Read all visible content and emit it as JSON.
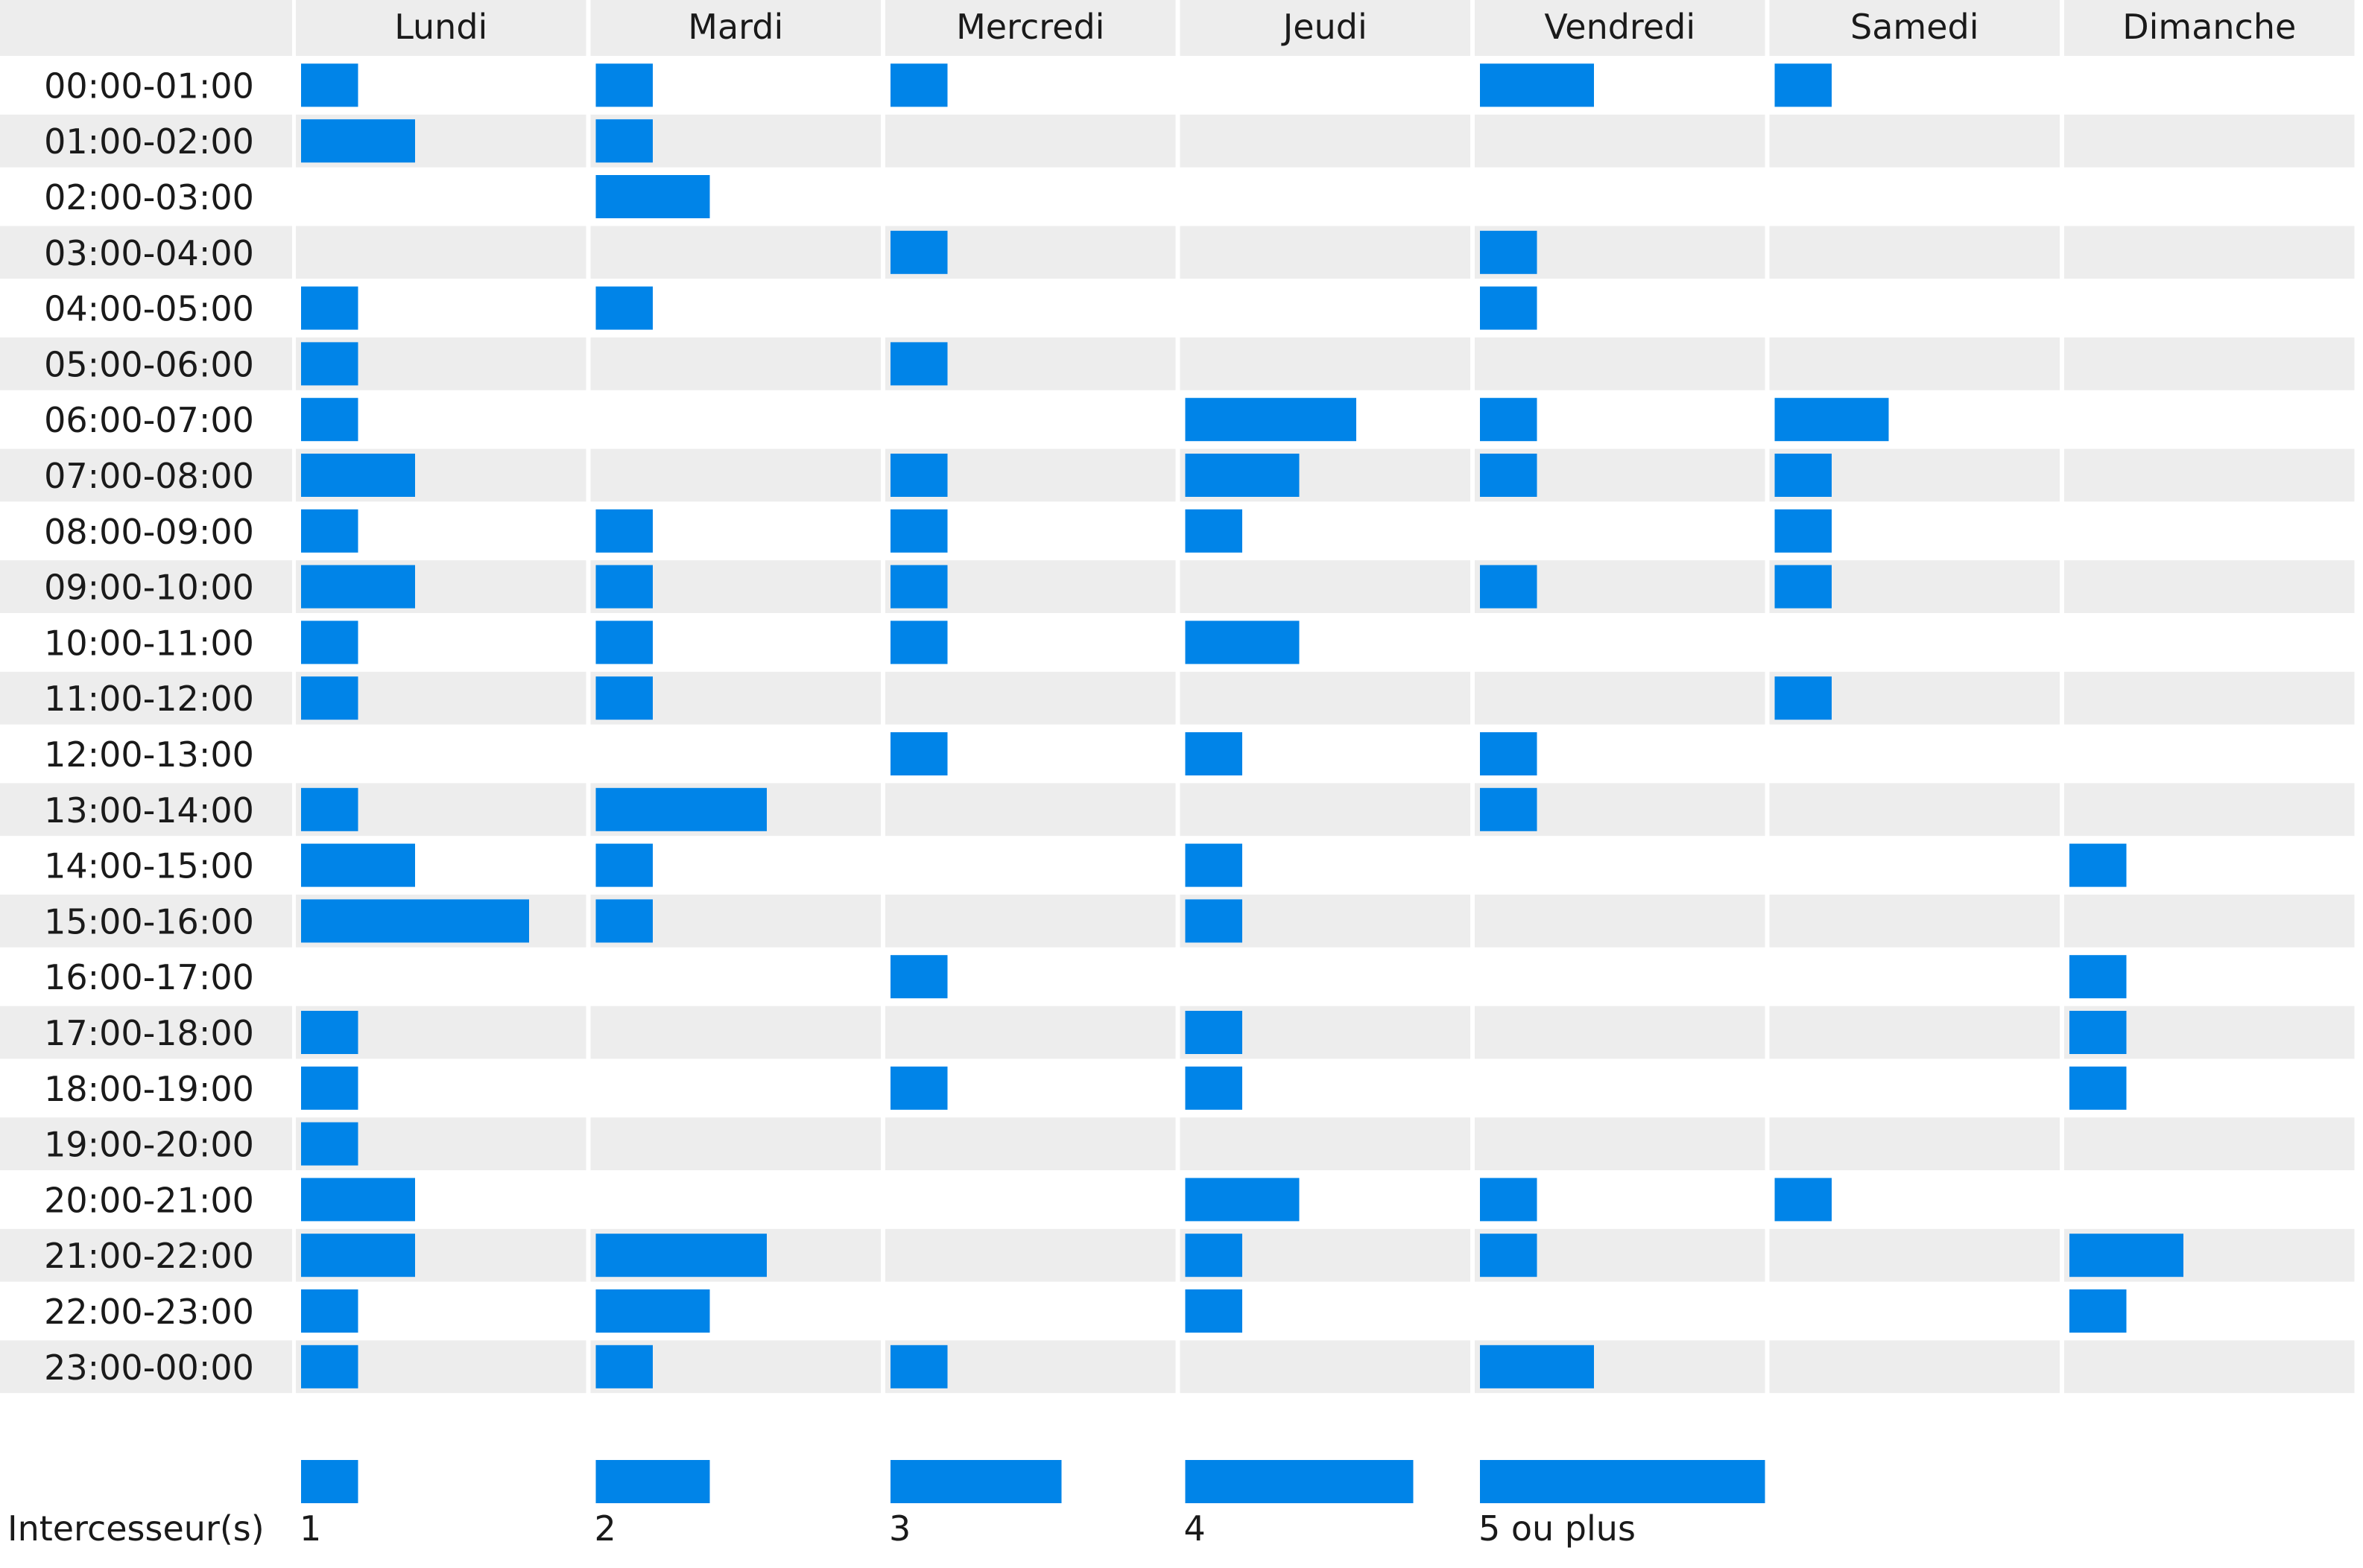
{
  "chart_data": {
    "type": "heatmap",
    "title": "",
    "xlabel": "",
    "ylabel": "",
    "columns": [
      "Lundi",
      "Mardi",
      "Mercredi",
      "Jeudi",
      "Vendredi",
      "Samedi",
      "Dimanche"
    ],
    "rows": [
      "00:00-01:00",
      "01:00-02:00",
      "02:00-03:00",
      "03:00-04:00",
      "04:00-05:00",
      "05:00-06:00",
      "06:00-07:00",
      "07:00-08:00",
      "08:00-09:00",
      "09:00-10:00",
      "10:00-11:00",
      "11:00-12:00",
      "12:00-13:00",
      "13:00-14:00",
      "14:00-15:00",
      "15:00-16:00",
      "16:00-17:00",
      "17:00-18:00",
      "18:00-19:00",
      "19:00-20:00",
      "20:00-21:00",
      "21:00-22:00",
      "22:00-23:00",
      "23:00-00:00"
    ],
    "values": [
      [
        1,
        1,
        1,
        0,
        2,
        1,
        0
      ],
      [
        2,
        1,
        0,
        0,
        0,
        0,
        0
      ],
      [
        0,
        2,
        0,
        0,
        0,
        0,
        0
      ],
      [
        0,
        0,
        1,
        0,
        1,
        0,
        0
      ],
      [
        1,
        1,
        0,
        0,
        1,
        0,
        0
      ],
      [
        1,
        0,
        1,
        0,
        0,
        0,
        0
      ],
      [
        1,
        0,
        0,
        3,
        1,
        2,
        0
      ],
      [
        2,
        0,
        1,
        2,
        1,
        1,
        0
      ],
      [
        1,
        1,
        1,
        1,
        0,
        1,
        0
      ],
      [
        2,
        1,
        1,
        0,
        1,
        1,
        0
      ],
      [
        1,
        1,
        1,
        2,
        0,
        0,
        0
      ],
      [
        1,
        1,
        0,
        0,
        0,
        1,
        0
      ],
      [
        0,
        0,
        1,
        1,
        1,
        0,
        0
      ],
      [
        1,
        3,
        0,
        0,
        1,
        0,
        0
      ],
      [
        2,
        1,
        0,
        1,
        0,
        0,
        1
      ],
      [
        4,
        1,
        0,
        1,
        0,
        0,
        0
      ],
      [
        0,
        0,
        1,
        0,
        0,
        0,
        1
      ],
      [
        1,
        0,
        0,
        1,
        0,
        0,
        1
      ],
      [
        1,
        0,
        1,
        1,
        0,
        0,
        1
      ],
      [
        1,
        0,
        0,
        0,
        0,
        0,
        0
      ],
      [
        2,
        0,
        0,
        2,
        1,
        1,
        0
      ],
      [
        2,
        3,
        0,
        1,
        1,
        0,
        2
      ],
      [
        1,
        2,
        0,
        1,
        0,
        0,
        1
      ],
      [
        1,
        1,
        1,
        0,
        2,
        0,
        0
      ]
    ],
    "legend": {
      "title": "Intercesseur(s)",
      "items": [
        {
          "label": "1",
          "value": 1
        },
        {
          "label": "2",
          "value": 2
        },
        {
          "label": "3",
          "value": 3
        },
        {
          "label": "4",
          "value": 4
        },
        {
          "label": "5 ou plus",
          "value": 5
        }
      ]
    },
    "colors": {
      "bar": "#0084e8",
      "stripe": "#ededed",
      "background": "#ffffff"
    },
    "grid": false,
    "legend_placement": "bottom"
  }
}
